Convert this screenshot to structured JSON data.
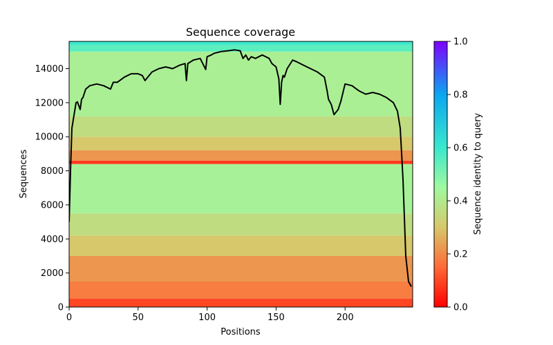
{
  "chart_data": {
    "type": "heatmap",
    "title": "Sequence coverage",
    "xlabel": "Positions",
    "ylabel": "Sequences",
    "xlim": [
      0,
      249
    ],
    "ylim": [
      0,
      15600
    ],
    "x_ticks": [
      "0",
      "50",
      "100",
      "150",
      "200"
    ],
    "y_ticks": [
      "0",
      "2000",
      "4000",
      "6000",
      "8000",
      "10000",
      "12000",
      "14000"
    ],
    "colorbar": {
      "label": "Sequence identity to query",
      "range": [
        0.0,
        1.0
      ],
      "ticks": [
        "0.0",
        "0.2",
        "0.4",
        "0.6",
        "0.8",
        "1.0"
      ],
      "colormap": "rainbow_r"
    },
    "identity_bands": [
      {
        "from": 0,
        "to": 500,
        "identity": 0.1
      },
      {
        "from": 500,
        "to": 1500,
        "identity": 0.18
      },
      {
        "from": 1500,
        "to": 3000,
        "identity": 0.22
      },
      {
        "from": 3000,
        "to": 4200,
        "identity": 0.3
      },
      {
        "from": 4200,
        "to": 5500,
        "identity": 0.36
      },
      {
        "from": 5500,
        "to": 8400,
        "identity": 0.43
      },
      {
        "from": 8400,
        "to": 8600,
        "identity": 0.08
      },
      {
        "from": 8600,
        "to": 9200,
        "identity": 0.22
      },
      {
        "from": 9200,
        "to": 10000,
        "identity": 0.3
      },
      {
        "from": 10000,
        "to": 11200,
        "identity": 0.36
      },
      {
        "from": 11200,
        "to": 15000,
        "identity": 0.42
      },
      {
        "from": 15000,
        "to": 15400,
        "identity": 0.55
      },
      {
        "from": 15400,
        "to": 15600,
        "identity": 0.6
      }
    ],
    "coverage_line": {
      "name": "coverage",
      "color": "#000000",
      "x": [
        0,
        1,
        2,
        3,
        5,
        6,
        8,
        9,
        10,
        12,
        15,
        20,
        25,
        30,
        32,
        35,
        40,
        45,
        50,
        53,
        55,
        60,
        65,
        70,
        75,
        80,
        84,
        85,
        86,
        90,
        95,
        99,
        100,
        103,
        105,
        110,
        115,
        120,
        124,
        126,
        128,
        130,
        132,
        135,
        140,
        145,
        147,
        150,
        152,
        153,
        154,
        155,
        156,
        158,
        162,
        165,
        170,
        175,
        180,
        185,
        187,
        188,
        190,
        192,
        195,
        197,
        200,
        205,
        210,
        215,
        220,
        225,
        230,
        235,
        238,
        240,
        242,
        244,
        246,
        248
      ],
      "y": [
        5000,
        8000,
        10500,
        11000,
        12000,
        12050,
        11600,
        12200,
        12300,
        12800,
        13000,
        13100,
        13000,
        12800,
        13200,
        13200,
        13500,
        13700,
        13700,
        13600,
        13300,
        13800,
        14000,
        14100,
        14000,
        14200,
        14300,
        13300,
        14300,
        14500,
        14600,
        13950,
        14700,
        14800,
        14900,
        15000,
        15050,
        15100,
        15050,
        14600,
        14800,
        14500,
        14700,
        14600,
        14800,
        14600,
        14300,
        14100,
        13400,
        11900,
        13200,
        13600,
        13500,
        14000,
        14500,
        14400,
        14200,
        14000,
        13800,
        13500,
        12700,
        12200,
        11900,
        11300,
        11600,
        12100,
        13100,
        13000,
        12700,
        12500,
        12600,
        12500,
        12300,
        12000,
        11500,
        10500,
        7500,
        3000,
        1500,
        1200
      ]
    }
  }
}
